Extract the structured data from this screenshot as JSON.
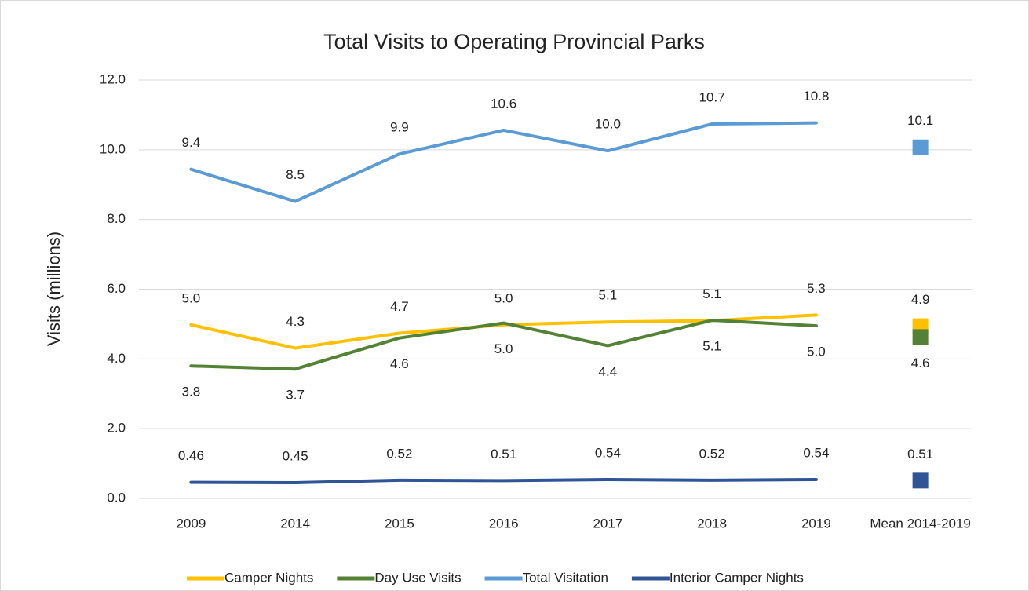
{
  "chart_data": {
    "type": "line",
    "title": "Total Visits to Operating Provincial Parks",
    "y_label": "Visits (millions)",
    "categories": [
      "2009",
      "2014",
      "2015",
      "2016",
      "2017",
      "2018",
      "2019",
      "Mean 2014-2019"
    ],
    "ylim": [
      0,
      12
    ],
    "yticks": [
      {
        "value": 0,
        "label": "0.0"
      },
      {
        "value": 2,
        "label": "2.0"
      },
      {
        "value": 4,
        "label": "4.0"
      },
      {
        "value": 6,
        "label": "6.0"
      },
      {
        "value": 8,
        "label": "8.0"
      },
      {
        "value": 10,
        "label": "10.0"
      },
      {
        "value": 12,
        "label": "12.0"
      }
    ],
    "grid": true,
    "legend": "bottom",
    "series": [
      {
        "name": "Camper Nights",
        "color": "#ffc000",
        "values": [
          4.98,
          4.31,
          4.74,
          4.98,
          5.06,
          5.1,
          5.26,
          4.94
        ],
        "value_labels": [
          "5.0",
          "4.3",
          "4.7",
          "5.0",
          "5.1",
          "5.1",
          "5.3",
          "4.9"
        ]
      },
      {
        "name": "Day Use Visits",
        "color": "#548235",
        "values": [
          3.8,
          3.71,
          4.6,
          5.03,
          4.38,
          5.11,
          4.95,
          4.63
        ],
        "value_labels": [
          "3.8",
          "3.7",
          "4.6",
          "5.0",
          "4.4",
          "5.1",
          "5.0",
          "4.6"
        ]
      },
      {
        "name": "Total Visitation",
        "color": "#5b9bd5",
        "values": [
          9.44,
          8.52,
          9.88,
          10.56,
          9.97,
          10.74,
          10.77,
          10.07
        ],
        "value_labels": [
          "9.4",
          "8.5",
          "9.9",
          "10.6",
          "10.0",
          "10.7",
          "10.8",
          "10.1"
        ]
      },
      {
        "name": "Interior Camper Nights",
        "color": "#2f5597",
        "values": [
          0.46,
          0.45,
          0.52,
          0.51,
          0.54,
          0.52,
          0.54,
          0.51
        ],
        "value_labels": [
          "0.46",
          "0.45",
          "0.52",
          "0.51",
          "0.54",
          "0.52",
          "0.54",
          "0.51"
        ]
      }
    ]
  }
}
